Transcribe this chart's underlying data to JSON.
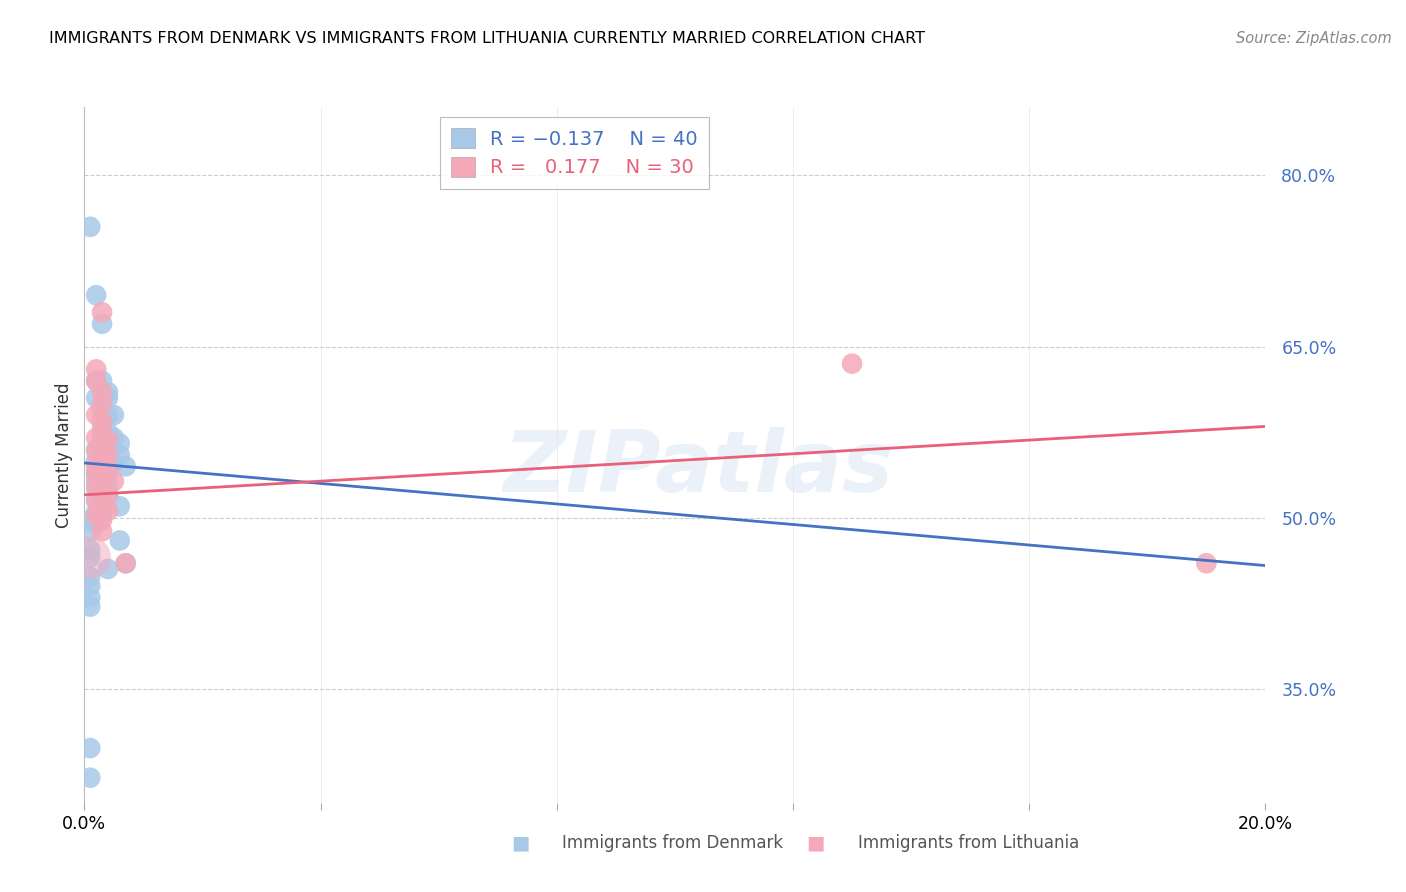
{
  "title": "IMMIGRANTS FROM DENMARK VS IMMIGRANTS FROM LITHUANIA CURRENTLY MARRIED CORRELATION CHART",
  "source": "Source: ZipAtlas.com",
  "ylabel": "Currently Married",
  "xlim": [
    0.0,
    0.2
  ],
  "ylim": [
    0.25,
    0.86
  ],
  "yticks": [
    0.35,
    0.5,
    0.65,
    0.8
  ],
  "ytick_labels": [
    "35.0%",
    "50.0%",
    "65.0%",
    "80.0%"
  ],
  "xticks": [
    0.0,
    0.04,
    0.08,
    0.12,
    0.16,
    0.2
  ],
  "xtick_labels": [
    "0.0%",
    "",
    "",
    "",
    "",
    "20.0%"
  ],
  "watermark": "ZIPatlas",
  "denmark_color": "#a8c8e8",
  "lithuania_color": "#f4a8b8",
  "denmark_line_color": "#4472c4",
  "lithuania_line_color": "#e8607a",
  "denmark_scatter": [
    [
      0.001,
      0.755
    ],
    [
      0.002,
      0.695
    ],
    [
      0.003,
      0.67
    ],
    [
      0.002,
      0.62
    ],
    [
      0.003,
      0.62
    ],
    [
      0.002,
      0.605
    ],
    [
      0.004,
      0.61
    ],
    [
      0.004,
      0.605
    ],
    [
      0.003,
      0.595
    ],
    [
      0.004,
      0.59
    ],
    [
      0.005,
      0.59
    ],
    [
      0.003,
      0.58
    ],
    [
      0.004,
      0.575
    ],
    [
      0.003,
      0.57
    ],
    [
      0.005,
      0.57
    ],
    [
      0.006,
      0.565
    ],
    [
      0.002,
      0.56
    ],
    [
      0.003,
      0.555
    ],
    [
      0.006,
      0.555
    ],
    [
      0.002,
      0.55
    ],
    [
      0.005,
      0.548
    ],
    [
      0.007,
      0.545
    ],
    [
      0.002,
      0.54
    ],
    [
      0.003,
      0.538
    ],
    [
      0.004,
      0.54
    ],
    [
      0.002,
      0.533
    ],
    [
      0.003,
      0.53
    ],
    [
      0.004,
      0.528
    ],
    [
      0.002,
      0.525
    ],
    [
      0.003,
      0.52
    ],
    [
      0.004,
      0.52
    ],
    [
      0.002,
      0.515
    ],
    [
      0.003,
      0.512
    ],
    [
      0.006,
      0.51
    ],
    [
      0.002,
      0.505
    ],
    [
      0.003,
      0.502
    ],
    [
      0.001,
      0.498
    ],
    [
      0.002,
      0.495
    ],
    [
      0.001,
      0.488
    ],
    [
      0.006,
      0.48
    ],
    [
      0.001,
      0.472
    ],
    [
      0.001,
      0.465
    ],
    [
      0.007,
      0.46
    ],
    [
      0.004,
      0.455
    ],
    [
      0.001,
      0.448
    ],
    [
      0.001,
      0.44
    ],
    [
      0.001,
      0.43
    ],
    [
      0.001,
      0.422
    ],
    [
      0.001,
      0.298
    ],
    [
      0.001,
      0.272
    ]
  ],
  "lithuania_scatter": [
    [
      0.003,
      0.68
    ],
    [
      0.002,
      0.63
    ],
    [
      0.002,
      0.62
    ],
    [
      0.003,
      0.61
    ],
    [
      0.003,
      0.6
    ],
    [
      0.002,
      0.59
    ],
    [
      0.003,
      0.585
    ],
    [
      0.003,
      0.575
    ],
    [
      0.002,
      0.57
    ],
    [
      0.004,
      0.568
    ],
    [
      0.003,
      0.562
    ],
    [
      0.002,
      0.558
    ],
    [
      0.004,
      0.555
    ],
    [
      0.003,
      0.55
    ],
    [
      0.002,
      0.545
    ],
    [
      0.004,
      0.542
    ],
    [
      0.002,
      0.538
    ],
    [
      0.003,
      0.535
    ],
    [
      0.005,
      0.532
    ],
    [
      0.002,
      0.528
    ],
    [
      0.003,
      0.525
    ],
    [
      0.004,
      0.52
    ],
    [
      0.002,
      0.515
    ],
    [
      0.003,
      0.51
    ],
    [
      0.004,
      0.506
    ],
    [
      0.002,
      0.502
    ],
    [
      0.003,
      0.498
    ],
    [
      0.003,
      0.488
    ],
    [
      0.007,
      0.46
    ],
    [
      0.13,
      0.635
    ],
    [
      0.19,
      0.46
    ]
  ],
  "denmark_line": {
    "x0": 0.0,
    "x1": 0.2,
    "y0": 0.548,
    "y1": 0.458
  },
  "lithuania_line": {
    "x0": 0.0,
    "x1": 0.2,
    "y0": 0.52,
    "y1": 0.58
  }
}
